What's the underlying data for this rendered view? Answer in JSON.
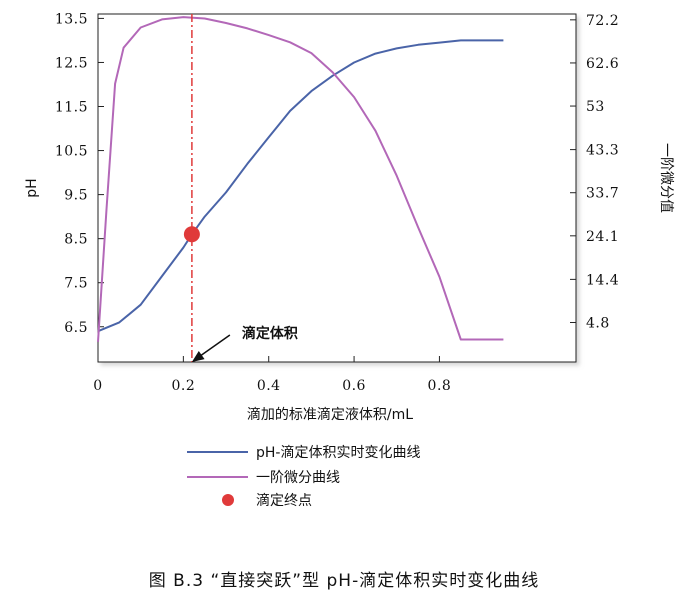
{
  "chart_data": {
    "type": "line",
    "xlabel": "滴加的标准滴定液体积/mL",
    "ylabel": "pH",
    "y2label": "一阶微分值",
    "xlim": [
      0,
      1.12
    ],
    "ylim": [
      5.7,
      13.6
    ],
    "y2lim": [
      -4.0,
      73.5
    ],
    "x_ticks": [
      "0",
      "0.2",
      "0.4",
      "0.6",
      "0.8"
    ],
    "x_tick_values": [
      0,
      0.2,
      0.4,
      0.6,
      0.8
    ],
    "y_ticks": [
      "6.5",
      "7.5",
      "8.5",
      "9.5",
      "10.5",
      "11.5",
      "12.5",
      "13.5"
    ],
    "y_tick_values": [
      6.5,
      7.5,
      8.5,
      9.5,
      10.5,
      11.5,
      12.5,
      13.5
    ],
    "y2_ticks": [
      "4.8",
      "14.4",
      "24.1",
      "33.7",
      "43.3",
      "53",
      "62.6",
      "72.2"
    ],
    "y2_tick_values": [
      4.8,
      14.4,
      24.1,
      33.7,
      43.3,
      53.0,
      62.6,
      72.2
    ],
    "series": [
      {
        "name": "pH-滴定体积实时变化曲线",
        "axis": "left",
        "color": "#4a64a8",
        "x": [
          0,
          0.05,
          0.1,
          0.15,
          0.2,
          0.22,
          0.25,
          0.3,
          0.35,
          0.4,
          0.45,
          0.5,
          0.55,
          0.6,
          0.65,
          0.7,
          0.75,
          0.8,
          0.85,
          0.9,
          0.95
        ],
        "y": [
          6.4,
          6.6,
          7.0,
          7.65,
          8.3,
          8.6,
          9.0,
          9.55,
          10.2,
          10.8,
          11.4,
          11.85,
          12.2,
          12.5,
          12.7,
          12.82,
          12.9,
          12.95,
          13.0,
          13.0,
          13.0
        ]
      },
      {
        "name": "一阶微分曲线",
        "axis": "right",
        "color": "#b368b8",
        "x": [
          0,
          0.02,
          0.04,
          0.06,
          0.1,
          0.15,
          0.2,
          0.25,
          0.3,
          0.35,
          0.4,
          0.45,
          0.5,
          0.55,
          0.6,
          0.65,
          0.7,
          0.75,
          0.8,
          0.85,
          0.9,
          0.95
        ],
        "y": [
          0.5,
          30,
          58,
          66,
          70.5,
          72.3,
          72.8,
          72.5,
          71.5,
          70.3,
          68.8,
          67.2,
          64.8,
          60.5,
          55.0,
          47.5,
          37.5,
          26.0,
          15.0,
          1.0,
          1.0,
          1.0
        ]
      }
    ],
    "markers": [
      {
        "name": "滴定终点",
        "x": 0.22,
        "y": 8.6,
        "axis": "left",
        "color": "#e03a3a"
      }
    ],
    "vline": {
      "x": 0.22,
      "color": "#e03a3a",
      "style": "dash-dot"
    },
    "annotation": {
      "text": "滴定体积",
      "target_x": 0.22,
      "target_y": 5.7
    },
    "legend": {
      "placement": "below",
      "entries": [
        {
          "label": "pH-滴定体积实时变化曲线",
          "type": "line",
          "color": "#4a64a8"
        },
        {
          "label": "一阶微分曲线",
          "type": "line",
          "color": "#b368b8"
        },
        {
          "label": "滴定终点",
          "type": "dot",
          "color": "#e03a3a"
        }
      ]
    }
  },
  "caption": "图 B.3 “直接突跃”型 pH-滴定体积实时变化曲线"
}
